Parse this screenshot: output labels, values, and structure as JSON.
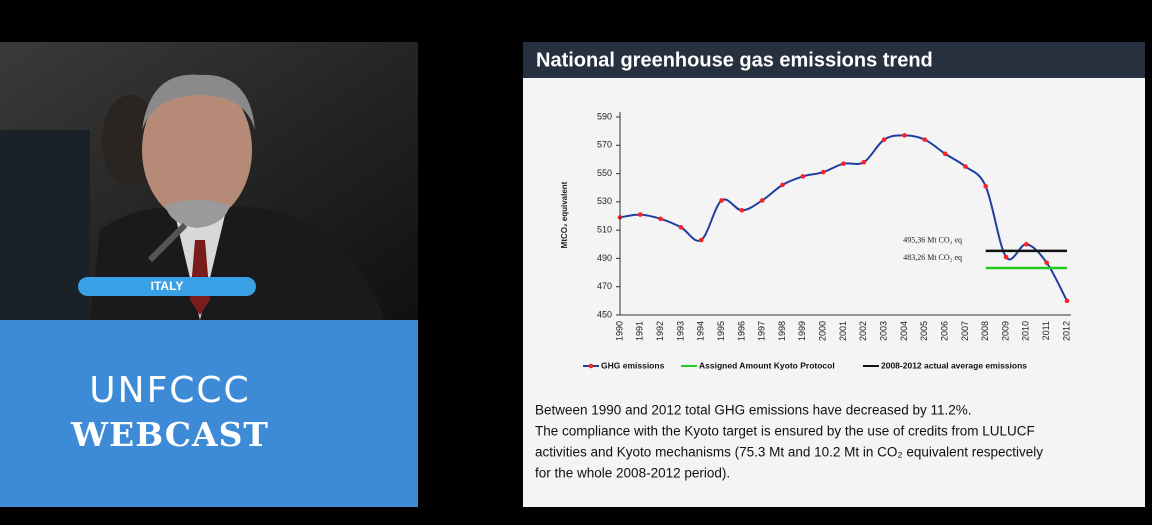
{
  "video": {
    "caption": "ITALY"
  },
  "branding": {
    "line1": "UNFCCC",
    "line2": "WEBCAST"
  },
  "slide": {
    "title": "National greenhouse gas emissions trend",
    "text_lines": [
      "Between 1990 and 2012 total GHG emissions have decreased by 11.2%.",
      "The compliance with the Kyoto target is ensured by the use of credits from LULUCF",
      "activities and Kyoto mechanisms (75.3 Mt and 10.2 Mt in CO₂ equivalent respectively",
      "for the whole 2008-2012 period)."
    ]
  },
  "chart_data": {
    "type": "line",
    "y_label": "MtCO₂ equivalent",
    "categories": [
      "1990",
      "1991",
      "1992",
      "1993",
      "1994",
      "1995",
      "1996",
      "1997",
      "1998",
      "1999",
      "2000",
      "2001",
      "2002",
      "2003",
      "2004",
      "2005",
      "2006",
      "2007",
      "2008",
      "2009",
      "2010",
      "2011",
      "2012"
    ],
    "series": [
      {
        "name": "GHG emissions",
        "color": "#1f3f9f",
        "marker_color": "#ff2020",
        "values": [
          519,
          521,
          518,
          512,
          503,
          531,
          524,
          531,
          542,
          548,
          551,
          557,
          558,
          574,
          577,
          574,
          564,
          555,
          541,
          491,
          500,
          487,
          460
        ]
      },
      {
        "name": "Assigned Amount Kyoto Protocol",
        "color": "#22cc22",
        "values": [
          null,
          null,
          null,
          null,
          null,
          null,
          null,
          null,
          null,
          null,
          null,
          null,
          null,
          null,
          null,
          null,
          null,
          null,
          483.26,
          483.26,
          483.26,
          483.26,
          483.26
        ]
      },
      {
        "name": "2008-2012 actual average emissions",
        "color": "#111111",
        "values": [
          null,
          null,
          null,
          null,
          null,
          null,
          null,
          null,
          null,
          null,
          null,
          null,
          null,
          null,
          null,
          null,
          null,
          null,
          495.36,
          495.36,
          495.36,
          495.36,
          495.36
        ]
      }
    ],
    "annotations": [
      {
        "text": "495,36 Mt CO₂ eq",
        "value": 495.36
      },
      {
        "text": "483,26 Mt CO₂ eq",
        "value": 483.26
      }
    ],
    "ylim": [
      450,
      590
    ],
    "yticks": [
      450,
      470,
      490,
      510,
      530,
      550,
      570,
      590
    ],
    "grid": false,
    "legend": "bottom"
  }
}
